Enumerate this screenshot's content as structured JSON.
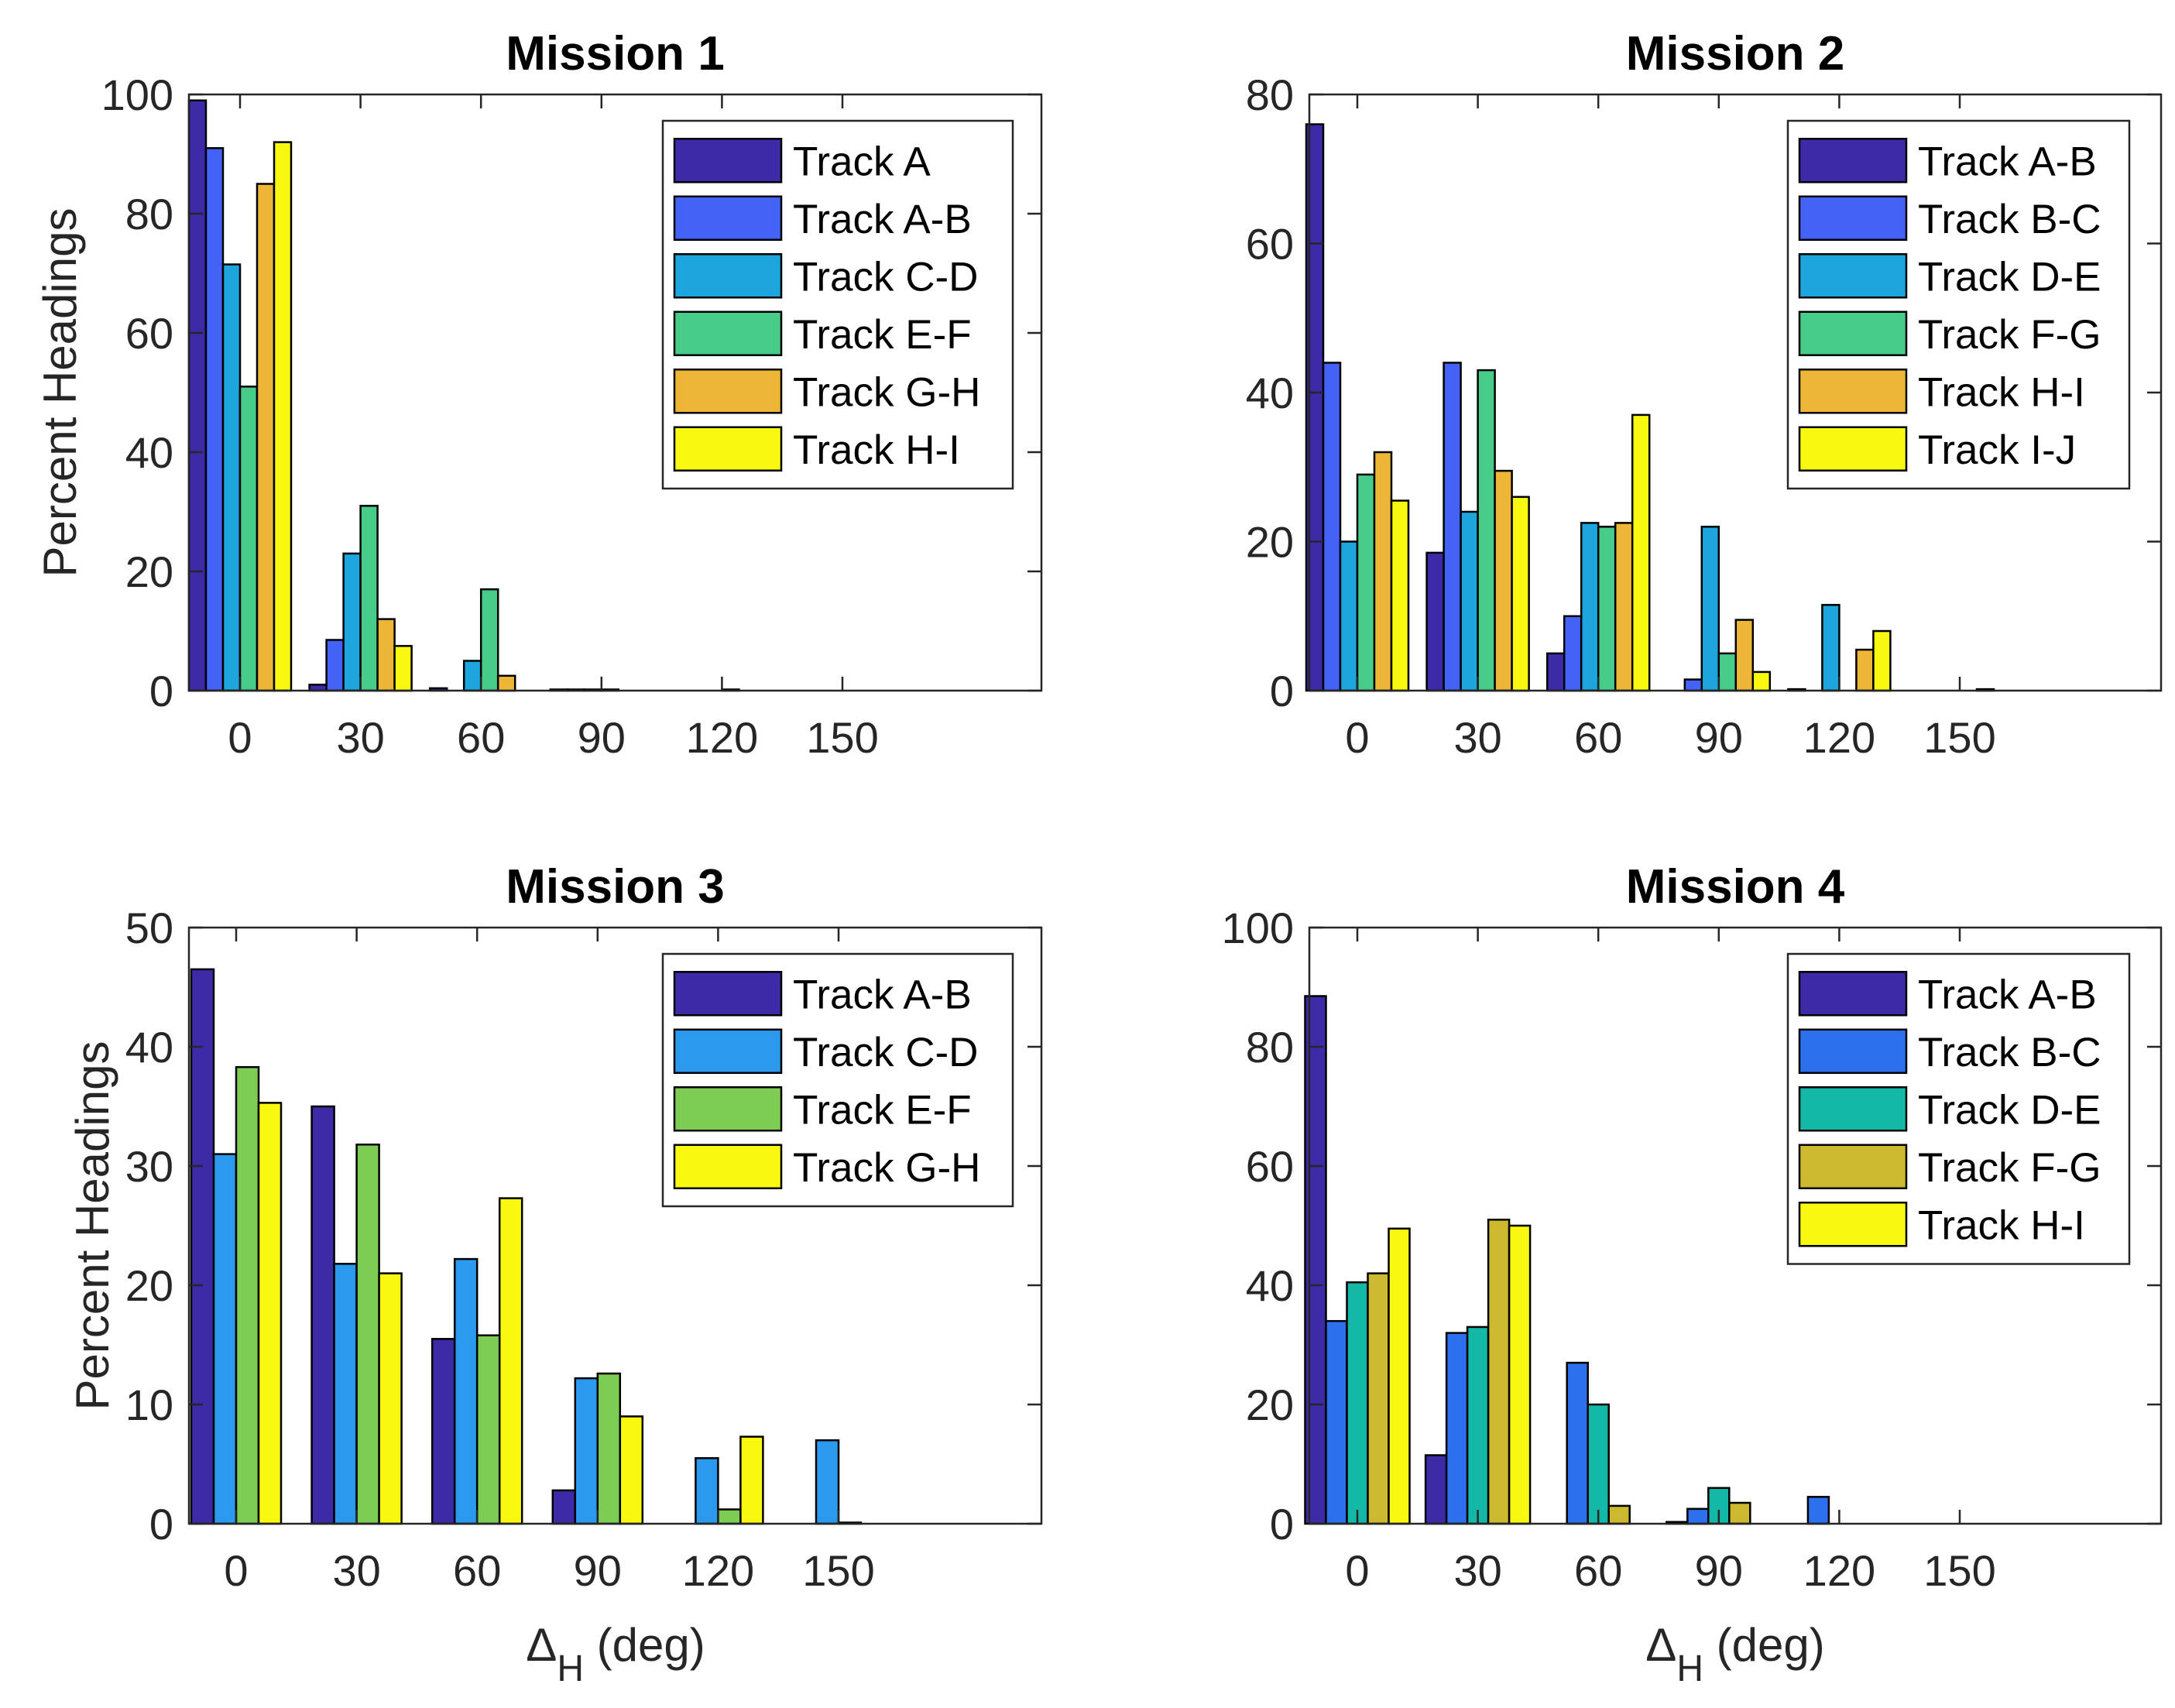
{
  "chart_data": [
    {
      "type": "bar",
      "title": "Mission 1",
      "ylabel": "Percent Headings",
      "xlabel": "",
      "categories": [
        "0",
        "30",
        "60",
        "90",
        "120",
        "150"
      ],
      "ylim": [
        0,
        100
      ],
      "yticks": [
        0,
        20,
        40,
        60,
        80,
        100
      ],
      "legend_position": "top-right",
      "series": [
        {
          "name": "Track A",
          "color": "#3c2aa6",
          "values": [
            99.0,
            1.0,
            0.4,
            0.2,
            0.0,
            0.0
          ]
        },
        {
          "name": "Track A-B",
          "color": "#4263f5",
          "values": [
            91.0,
            8.5,
            0.0,
            0.2,
            0.0,
            0.0
          ]
        },
        {
          "name": "Track C-D",
          "color": "#1ca6dd",
          "values": [
            71.5,
            23.0,
            5.0,
            0.2,
            0.0,
            0.0
          ]
        },
        {
          "name": "Track E-F",
          "color": "#48cc8a",
          "values": [
            51.0,
            31.0,
            17.0,
            0.2,
            0.2,
            0.0
          ]
        },
        {
          "name": "Track G-H",
          "color": "#eeb637",
          "values": [
            85.0,
            12.0,
            2.5,
            0.0,
            0.0,
            0.0
          ]
        },
        {
          "name": "Track H-I",
          "color": "#f8f810",
          "values": [
            92.0,
            7.5,
            0.0,
            0.0,
            0.0,
            0.0
          ]
        }
      ]
    },
    {
      "type": "bar",
      "title": "Mission 2",
      "ylabel": "",
      "xlabel": "",
      "categories": [
        "0",
        "30",
        "60",
        "90",
        "120",
        "150"
      ],
      "ylim": [
        0,
        80
      ],
      "yticks": [
        0,
        20,
        40,
        60,
        80
      ],
      "legend_position": "top-right",
      "series": [
        {
          "name": "Track A-B",
          "color": "#3c2aa6",
          "values": [
            76.0,
            18.5,
            5.0,
            0.0,
            0.2,
            0.0
          ]
        },
        {
          "name": "Track B-C",
          "color": "#4263f5",
          "values": [
            44.0,
            44.0,
            10.0,
            1.5,
            0.0,
            0.0
          ]
        },
        {
          "name": "Track D-E",
          "color": "#1ca6dd",
          "values": [
            20.0,
            24.0,
            22.5,
            22.0,
            11.5,
            0.0
          ]
        },
        {
          "name": "Track F-G",
          "color": "#48cc8a",
          "values": [
            29.0,
            43.0,
            22.0,
            5.0,
            0.0,
            0.0
          ]
        },
        {
          "name": "Track H-I",
          "color": "#eeb637",
          "values": [
            32.0,
            29.5,
            22.5,
            9.5,
            5.5,
            0.2
          ]
        },
        {
          "name": "Track I-J",
          "color": "#f8f810",
          "values": [
            25.5,
            26.0,
            37.0,
            2.5,
            8.0,
            0.0
          ]
        }
      ]
    },
    {
      "type": "bar",
      "title": "Mission 3",
      "ylabel": "Percent Headings",
      "xlabel": "Δ",
      "xlabel_sub": "H",
      "xlabel_unit": " (deg)",
      "categories": [
        "0",
        "30",
        "60",
        "90",
        "120",
        "150"
      ],
      "ylim": [
        0,
        50
      ],
      "yticks": [
        0,
        10,
        20,
        30,
        40,
        50
      ],
      "legend_position": "top-right",
      "series": [
        {
          "name": "Track A-B",
          "color": "#3c2aa6",
          "values": [
            46.5,
            35.0,
            15.5,
            2.8,
            0.0,
            0.0
          ]
        },
        {
          "name": "Track C-D",
          "color": "#2a99ee",
          "values": [
            31.0,
            21.8,
            22.2,
            12.2,
            5.5,
            7.0
          ]
        },
        {
          "name": "Track E-F",
          "color": "#7dcc53",
          "values": [
            38.3,
            31.8,
            15.8,
            12.6,
            1.2,
            0.1
          ]
        },
        {
          "name": "Track G-H",
          "color": "#f8f810",
          "values": [
            35.3,
            21.0,
            27.3,
            9.0,
            7.3,
            0.0
          ]
        }
      ]
    },
    {
      "type": "bar",
      "title": "Mission 4",
      "ylabel": "",
      "xlabel": "Δ",
      "xlabel_sub": "H",
      "xlabel_unit": " (deg)",
      "categories": [
        "0",
        "30",
        "60",
        "90",
        "120",
        "150"
      ],
      "ylim": [
        0,
        100
      ],
      "yticks": [
        0,
        20,
        40,
        60,
        80,
        100
      ],
      "legend_position": "top-right",
      "series": [
        {
          "name": "Track A-B",
          "color": "#3c2aa6",
          "values": [
            88.5,
            11.5,
            0.0,
            0.3,
            0.0,
            0.0
          ]
        },
        {
          "name": "Track B-C",
          "color": "#2c70ee",
          "values": [
            34.0,
            32.0,
            27.0,
            2.5,
            4.5,
            0.0
          ]
        },
        {
          "name": "Track D-E",
          "color": "#14b8a6",
          "values": [
            40.5,
            33.0,
            20.0,
            6.0,
            0.0,
            0.0
          ]
        },
        {
          "name": "Track F-G",
          "color": "#cdb92e",
          "values": [
            42.0,
            51.0,
            3.0,
            3.5,
            0.0,
            0.0
          ]
        },
        {
          "name": "Track H-I",
          "color": "#f8f810",
          "values": [
            49.5,
            50.0,
            0.0,
            0.0,
            0.0,
            0.0
          ]
        }
      ]
    }
  ]
}
